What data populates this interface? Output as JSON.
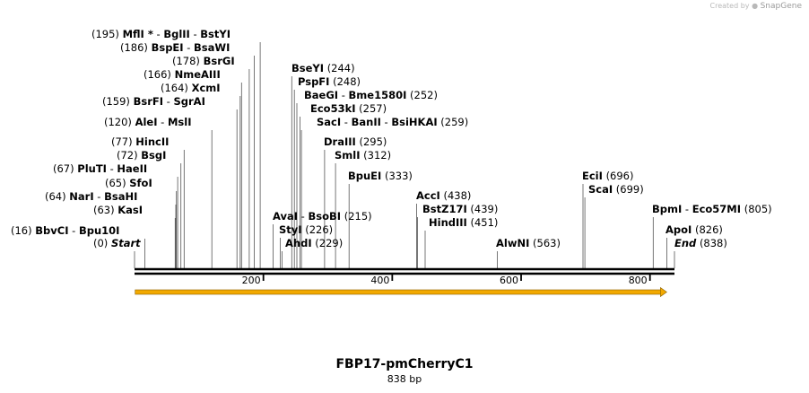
{
  "watermark": {
    "prefix": "Created by",
    "brand": "SnapGene"
  },
  "sequence": {
    "name": "FBP17-pmCherryC1",
    "length_label": "838 bp",
    "length": 838
  },
  "axis": {
    "ticks": [
      {
        "value": 200,
        "label": "200"
      },
      {
        "value": 400,
        "label": "400"
      },
      {
        "value": 600,
        "label": "600"
      },
      {
        "value": 800,
        "label": "800"
      }
    ]
  },
  "features": [
    {
      "name": "orf-arrow",
      "start": 1,
      "end": 826,
      "color": "#f2a900"
    }
  ],
  "sites": [
    {
      "id": "start",
      "pos": 0,
      "pos_label": "(0)",
      "names": [
        "Start"
      ],
      "italic": true
    },
    {
      "id": "bbvci",
      "pos": 16,
      "pos_label": "(16)",
      "names": [
        "BbvCI",
        "Bpu10I"
      ]
    },
    {
      "id": "kasi",
      "pos": 63,
      "pos_label": "(63)",
      "names": [
        "KasI"
      ]
    },
    {
      "id": "nari",
      "pos": 64,
      "pos_label": "(64)",
      "names": [
        "NarI",
        "BsaHI"
      ]
    },
    {
      "id": "sfoi",
      "pos": 65,
      "pos_label": "(65)",
      "names": [
        "SfoI"
      ]
    },
    {
      "id": "pluti",
      "pos": 67,
      "pos_label": "(67)",
      "names": [
        "PluTI",
        "HaeII"
      ]
    },
    {
      "id": "bsgi",
      "pos": 72,
      "pos_label": "(72)",
      "names": [
        "BsgI"
      ]
    },
    {
      "id": "hincii",
      "pos": 77,
      "pos_label": "(77)",
      "names": [
        "HincII"
      ]
    },
    {
      "id": "alei",
      "pos": 120,
      "pos_label": "(120)",
      "names": [
        "AleI",
        "MslI"
      ]
    },
    {
      "id": "bsrfi",
      "pos": 159,
      "pos_label": "(159)",
      "names": [
        "BsrFI",
        "SgrAI"
      ]
    },
    {
      "id": "xcmi",
      "pos": 164,
      "pos_label": "(164)",
      "names": [
        "XcmI"
      ]
    },
    {
      "id": "nmeaiii",
      "pos": 166,
      "pos_label": "(166)",
      "names": [
        "NmeAIII"
      ]
    },
    {
      "id": "bsrgi",
      "pos": 178,
      "pos_label": "(178)",
      "names": [
        "BsrGI"
      ]
    },
    {
      "id": "bspei",
      "pos": 186,
      "pos_label": "(186)",
      "names": [
        "BspEI",
        "BsaWI"
      ]
    },
    {
      "id": "mfli",
      "pos": 195,
      "pos_label": "(195)",
      "names": [
        "MflI *",
        "BglII",
        "BstYI"
      ]
    },
    {
      "id": "avai",
      "pos": 215,
      "pos_label": "(215)",
      "names": [
        "AvaI",
        "BsoBI"
      ]
    },
    {
      "id": "styi",
      "pos": 226,
      "pos_label": "(226)",
      "names": [
        "StyI"
      ]
    },
    {
      "id": "ahdi",
      "pos": 229,
      "pos_label": "(229)",
      "names": [
        "AhdI"
      ]
    },
    {
      "id": "bseyi",
      "pos": 244,
      "pos_label": "(244)",
      "names": [
        "BseYI"
      ]
    },
    {
      "id": "pspfi",
      "pos": 248,
      "pos_label": "(248)",
      "names": [
        "PspFI"
      ]
    },
    {
      "id": "baegi",
      "pos": 252,
      "pos_label": "(252)",
      "names": [
        "BaeGI",
        "Bme1580I"
      ]
    },
    {
      "id": "eco53ki",
      "pos": 257,
      "pos_label": "(257)",
      "names": [
        "Eco53kI"
      ]
    },
    {
      "id": "saci",
      "pos": 259,
      "pos_label": "(259)",
      "names": [
        "SacI",
        "BanII",
        "BsiHKAI"
      ]
    },
    {
      "id": "draiii",
      "pos": 295,
      "pos_label": "(295)",
      "names": [
        "DraIII"
      ]
    },
    {
      "id": "smli",
      "pos": 312,
      "pos_label": "(312)",
      "names": [
        "SmlI"
      ]
    },
    {
      "id": "bpuei",
      "pos": 333,
      "pos_label": "(333)",
      "names": [
        "BpuEI"
      ]
    },
    {
      "id": "acci",
      "pos": 438,
      "pos_label": "(438)",
      "names": [
        "AccI"
      ]
    },
    {
      "id": "bstz17i",
      "pos": 439,
      "pos_label": "(439)",
      "names": [
        "BstZ17I"
      ]
    },
    {
      "id": "hindiii",
      "pos": 451,
      "pos_label": "(451)",
      "names": [
        "HindIII"
      ]
    },
    {
      "id": "alwni",
      "pos": 563,
      "pos_label": "(563)",
      "names": [
        "AlwNI"
      ]
    },
    {
      "id": "ecii",
      "pos": 696,
      "pos_label": "(696)",
      "names": [
        "EciI"
      ]
    },
    {
      "id": "scai",
      "pos": 699,
      "pos_label": "(699)",
      "names": [
        "ScaI"
      ]
    },
    {
      "id": "bpmi",
      "pos": 805,
      "pos_label": "(805)",
      "names": [
        "BpmI",
        "Eco57MI"
      ]
    },
    {
      "id": "apoi",
      "pos": 826,
      "pos_label": "(826)",
      "names": [
        "ApoI"
      ]
    },
    {
      "id": "end",
      "pos": 838,
      "pos_label": "(838)",
      "names": [
        "End"
      ],
      "italic": true
    }
  ]
}
